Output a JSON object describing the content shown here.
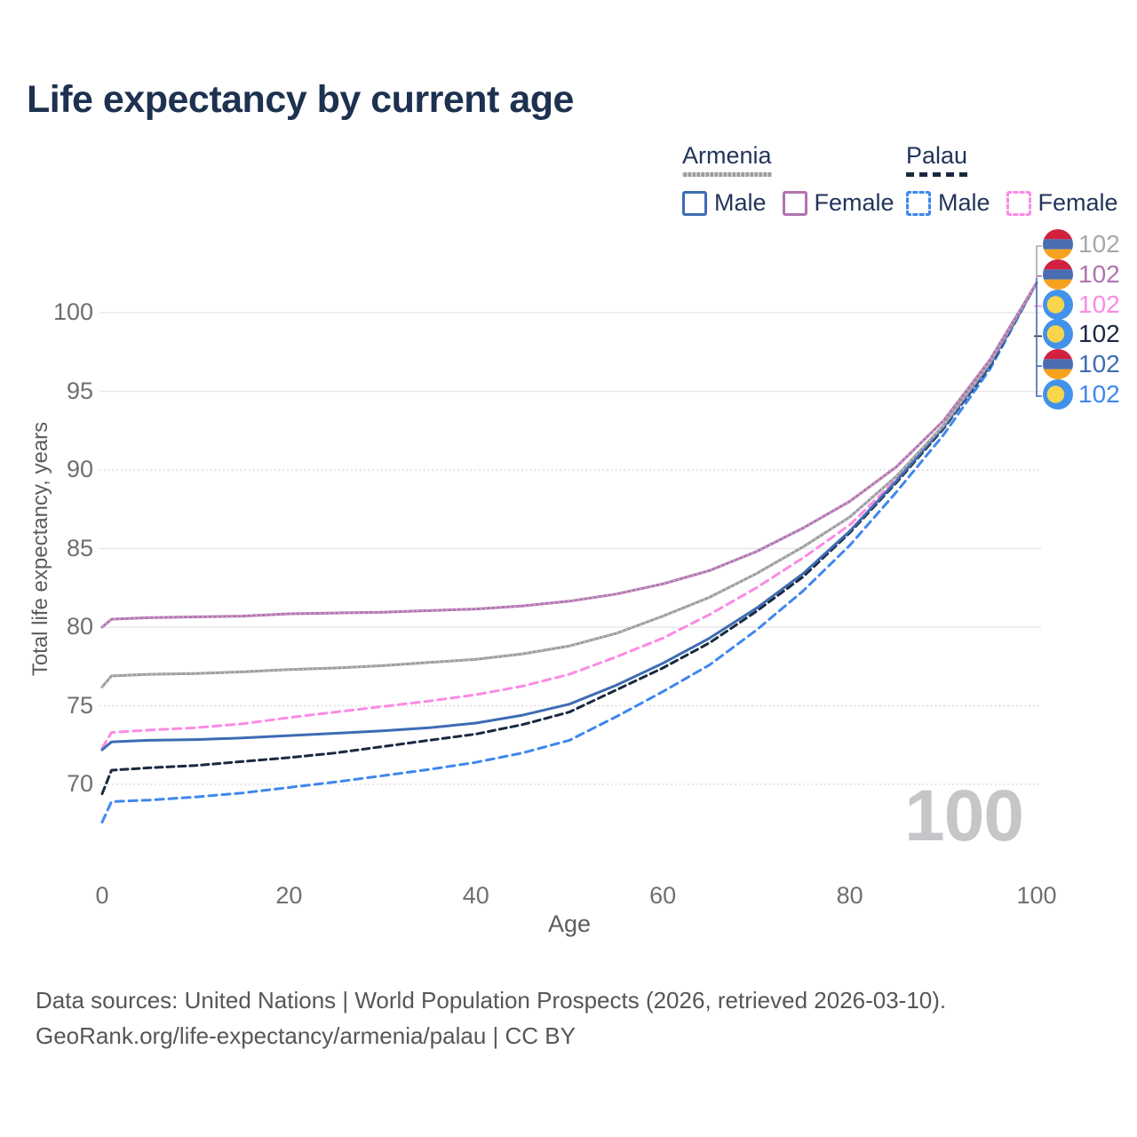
{
  "title": "Life expectancy by current age",
  "watermark": "100",
  "source": {
    "line1": "Data sources: United Nations | World Population Prospects (2026, retrieved 2026-03-10).",
    "line2": "GeoRank.org/life-expectancy/armenia/palau | CC BY"
  },
  "legend": {
    "groups": [
      {
        "name": "Armenia",
        "line_color": "#9b9b9f",
        "line_style": "solid",
        "items": [
          {
            "label": "Male",
            "color": "#3e6cb3",
            "style": "solid"
          },
          {
            "label": "Female",
            "color": "#b173af",
            "style": "solid"
          }
        ]
      },
      {
        "name": "Palau",
        "line_color": "#1a2940",
        "line_style": "dashed",
        "items": [
          {
            "label": "Male",
            "color": "#3e87ee",
            "style": "dashed"
          },
          {
            "label": "Female",
            "color": "#fb8ae4",
            "style": "dashed"
          }
        ]
      }
    ]
  },
  "chart_data": {
    "type": "line",
    "title": "Life expectancy by current age",
    "xlabel": "Age",
    "ylabel": "Total life expectancy, years",
    "xlim": [
      0,
      100
    ],
    "ylim": [
      66,
      103
    ],
    "xticks": [
      0,
      20,
      40,
      60,
      80,
      100
    ],
    "yticks": [
      {
        "value": 100,
        "style": "solid"
      },
      {
        "value": 95,
        "style": "solid"
      },
      {
        "value": 90,
        "style": "dotted"
      },
      {
        "value": 85,
        "style": "solid"
      },
      {
        "value": 80,
        "style": "solid"
      },
      {
        "value": 75,
        "style": "dotted"
      },
      {
        "value": 70,
        "style": "dotted"
      }
    ],
    "grid": "horizontal-only",
    "legend_position": "top-right",
    "ages": [
      0,
      1,
      5,
      10,
      15,
      20,
      25,
      30,
      35,
      40,
      45,
      50,
      55,
      60,
      65,
      70,
      75,
      80,
      85,
      90,
      95,
      100
    ],
    "series": [
      {
        "id": "palau-male",
        "country": "Palau",
        "group": "Male",
        "color": "#3e87ee",
        "dash": "9 6",
        "overlay_dots": false,
        "values": [
          67.6,
          68.9,
          69.0,
          69.2,
          69.45,
          69.8,
          70.15,
          70.55,
          70.95,
          71.4,
          72.0,
          72.8,
          74.3,
          75.9,
          77.6,
          79.8,
          82.3,
          85.2,
          88.6,
          92.2,
          96.4,
          101.9
        ]
      },
      {
        "id": "palau-all",
        "country": "Palau",
        "group": "Both sexes",
        "color": "#1a2940",
        "dash": "8 5",
        "overlay_dots": false,
        "values": [
          69.4,
          70.9,
          71.05,
          71.2,
          71.45,
          71.7,
          72.0,
          72.4,
          72.8,
          73.2,
          73.8,
          74.6,
          76.0,
          77.4,
          79.0,
          81.0,
          83.2,
          86.0,
          89.2,
          92.6,
          96.6,
          101.9
        ]
      },
      {
        "id": "palau-female",
        "country": "Palau",
        "group": "Female",
        "color": "#fb8ae4",
        "dash": "9 6",
        "overlay_dots": false,
        "values": [
          72.3,
          73.3,
          73.45,
          73.6,
          73.85,
          74.25,
          74.6,
          74.95,
          75.3,
          75.7,
          76.25,
          77.0,
          78.1,
          79.3,
          80.8,
          82.5,
          84.4,
          86.5,
          89.4,
          92.7,
          96.7,
          101.9
        ]
      },
      {
        "id": "armenia-male",
        "country": "Armenia",
        "group": "Male",
        "color": "#3e6cb3",
        "dash": null,
        "overlay_dots": false,
        "values": [
          72.2,
          72.7,
          72.8,
          72.85,
          72.95,
          73.1,
          73.25,
          73.4,
          73.6,
          73.9,
          74.4,
          75.1,
          76.3,
          77.7,
          79.3,
          81.2,
          83.4,
          86.1,
          89.3,
          92.7,
          96.7,
          101.9
        ]
      },
      {
        "id": "armenia-all",
        "country": "Armenia",
        "group": "Both sexes",
        "color": "#9b9b9f",
        "dash": null,
        "overlay_dots": true,
        "values": [
          76.2,
          76.9,
          77.0,
          77.05,
          77.15,
          77.3,
          77.4,
          77.55,
          77.75,
          77.95,
          78.3,
          78.8,
          79.6,
          80.7,
          81.9,
          83.4,
          85.1,
          87.0,
          89.6,
          92.8,
          96.8,
          101.9
        ]
      },
      {
        "id": "armenia-female",
        "country": "Armenia",
        "group": "Female",
        "color": "#b173af",
        "dash": null,
        "overlay_dots": true,
        "values": [
          80.0,
          80.5,
          80.6,
          80.65,
          80.7,
          80.85,
          80.9,
          80.95,
          81.05,
          81.15,
          81.35,
          81.65,
          82.1,
          82.75,
          83.6,
          84.8,
          86.3,
          88.0,
          90.2,
          93.1,
          97.0,
          101.9
        ]
      }
    ],
    "end_labels": [
      {
        "text": "102",
        "color": "#a8a8ac",
        "flag": "armenia",
        "series": "armenia-all"
      },
      {
        "text": "102",
        "color": "#b173af",
        "flag": "armenia",
        "series": "armenia-female"
      },
      {
        "text": "102",
        "color": "#fb8ae4",
        "flag": "palau",
        "series": "palau-female"
      },
      {
        "text": "102",
        "color": "#1a2940",
        "flag": "palau",
        "series": "palau-all"
      },
      {
        "text": "102",
        "color": "#3e6cb3",
        "flag": "armenia",
        "series": "armenia-male"
      },
      {
        "text": "102",
        "color": "#3e87ee",
        "flag": "palau",
        "series": "palau-male"
      }
    ]
  }
}
